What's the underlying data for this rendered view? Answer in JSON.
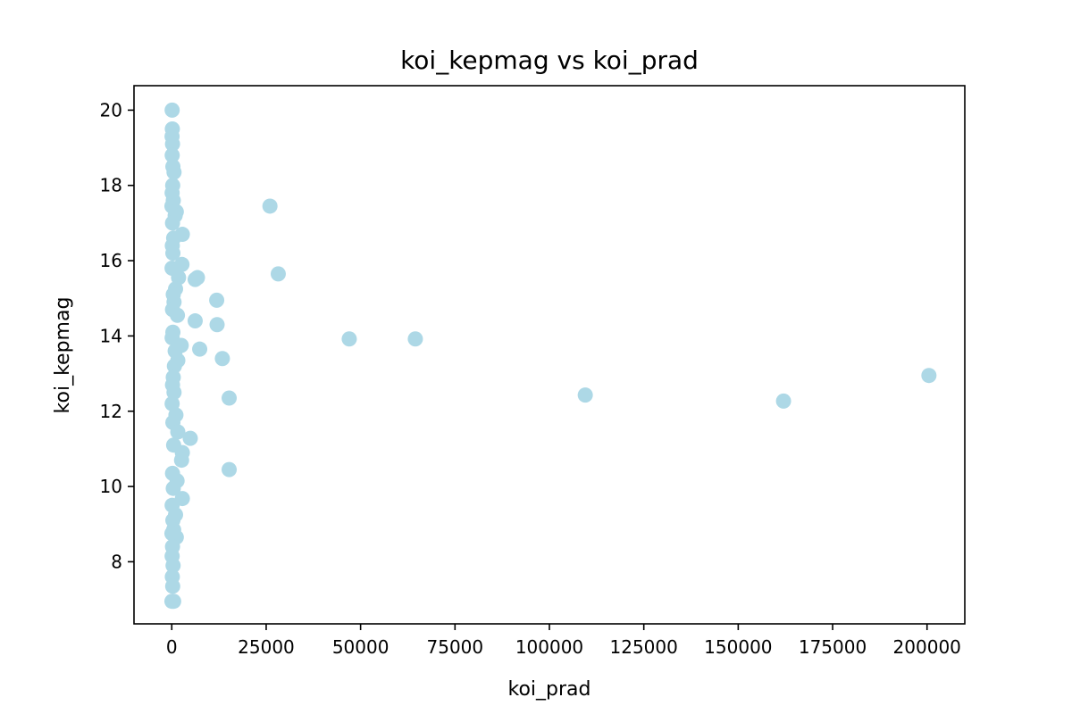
{
  "chart_data": {
    "type": "scatter",
    "title": "koi_kepmag vs koi_prad",
    "xlabel": "koi_prad",
    "ylabel": "koi_kepmag",
    "xlim": [
      -10000,
      210000
    ],
    "ylim": [
      6.35,
      20.65
    ],
    "x_ticks": [
      0,
      25000,
      50000,
      75000,
      100000,
      125000,
      150000,
      175000,
      200000
    ],
    "x_tick_labels": [
      "0",
      "25000",
      "50000",
      "75000",
      "100000",
      "125000",
      "150000",
      "175000",
      "200000"
    ],
    "y_ticks": [
      8,
      10,
      12,
      14,
      16,
      18,
      20
    ],
    "y_tick_labels": [
      "8",
      "10",
      "12",
      "14",
      "16",
      "18",
      "20"
    ],
    "grid": false,
    "legend": "none",
    "marker_color": "#add8e6",
    "points": [
      {
        "x": 100,
        "y": 20.0
      },
      {
        "x": 150,
        "y": 19.5
      },
      {
        "x": 80,
        "y": 19.3
      },
      {
        "x": 200,
        "y": 19.1
      },
      {
        "x": 120,
        "y": 18.8
      },
      {
        "x": 300,
        "y": 18.5
      },
      {
        "x": 600,
        "y": 18.35
      },
      {
        "x": 250,
        "y": 18.0
      },
      {
        "x": 100,
        "y": 17.8
      },
      {
        "x": 400,
        "y": 17.6
      },
      {
        "x": 50,
        "y": 17.45
      },
      {
        "x": 1200,
        "y": 17.3
      },
      {
        "x": 900,
        "y": 17.2
      },
      {
        "x": 200,
        "y": 17.0
      },
      {
        "x": 2800,
        "y": 16.7
      },
      {
        "x": 500,
        "y": 16.6
      },
      {
        "x": 150,
        "y": 16.4
      },
      {
        "x": 300,
        "y": 16.2
      },
      {
        "x": 2700,
        "y": 15.9
      },
      {
        "x": 80,
        "y": 15.8
      },
      {
        "x": 1800,
        "y": 15.55
      },
      {
        "x": 6200,
        "y": 15.5
      },
      {
        "x": 6800,
        "y": 15.55
      },
      {
        "x": 1000,
        "y": 15.25
      },
      {
        "x": 400,
        "y": 15.1
      },
      {
        "x": 11900,
        "y": 14.95
      },
      {
        "x": 600,
        "y": 14.9
      },
      {
        "x": 200,
        "y": 14.7
      },
      {
        "x": 1500,
        "y": 14.55
      },
      {
        "x": 6200,
        "y": 14.4
      },
      {
        "x": 12000,
        "y": 14.3
      },
      {
        "x": 300,
        "y": 14.1
      },
      {
        "x": 100,
        "y": 13.95
      },
      {
        "x": 2500,
        "y": 13.75
      },
      {
        "x": 7400,
        "y": 13.65
      },
      {
        "x": 900,
        "y": 13.6
      },
      {
        "x": 1600,
        "y": 13.35
      },
      {
        "x": 13400,
        "y": 13.4
      },
      {
        "x": 700,
        "y": 13.2
      },
      {
        "x": 400,
        "y": 12.9
      },
      {
        "x": 200,
        "y": 12.7
      },
      {
        "x": 600,
        "y": 12.5
      },
      {
        "x": 15200,
        "y": 12.35
      },
      {
        "x": 100,
        "y": 12.2
      },
      {
        "x": 1100,
        "y": 11.9
      },
      {
        "x": 300,
        "y": 11.7
      },
      {
        "x": 1600,
        "y": 11.45
      },
      {
        "x": 4900,
        "y": 11.28
      },
      {
        "x": 500,
        "y": 11.1
      },
      {
        "x": 2800,
        "y": 10.9
      },
      {
        "x": 2600,
        "y": 10.7
      },
      {
        "x": 15200,
        "y": 10.45
      },
      {
        "x": 200,
        "y": 10.35
      },
      {
        "x": 1400,
        "y": 10.15
      },
      {
        "x": 400,
        "y": 9.95
      },
      {
        "x": 2800,
        "y": 9.68
      },
      {
        "x": 100,
        "y": 9.5
      },
      {
        "x": 1000,
        "y": 9.25
      },
      {
        "x": 300,
        "y": 9.1
      },
      {
        "x": 500,
        "y": 8.85
      },
      {
        "x": 50,
        "y": 8.75
      },
      {
        "x": 1200,
        "y": 8.65
      },
      {
        "x": 200,
        "y": 8.4
      },
      {
        "x": 100,
        "y": 8.15
      },
      {
        "x": 350,
        "y": 7.9
      },
      {
        "x": 150,
        "y": 7.6
      },
      {
        "x": 250,
        "y": 7.35
      },
      {
        "x": 50,
        "y": 6.95
      },
      {
        "x": 500,
        "y": 6.95
      },
      {
        "x": 26000,
        "y": 17.45
      },
      {
        "x": 28200,
        "y": 15.65
      },
      {
        "x": 47000,
        "y": 13.92
      },
      {
        "x": 64500,
        "y": 13.92
      },
      {
        "x": 109500,
        "y": 12.43
      },
      {
        "x": 162000,
        "y": 12.27
      },
      {
        "x": 200500,
        "y": 12.95
      }
    ]
  }
}
